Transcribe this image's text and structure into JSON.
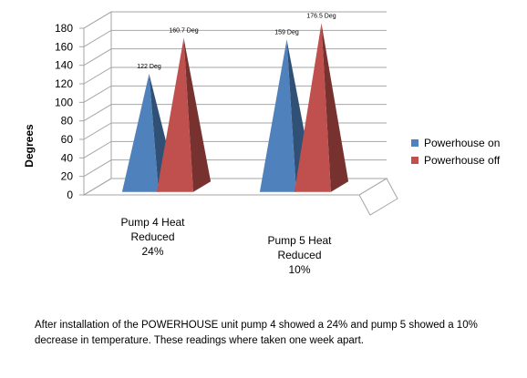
{
  "chart_data": {
    "type": "bar",
    "bar_shape": "pyramid-3d",
    "categories": [
      [
        "Pump 4 Heat",
        "Reduced",
        "24%"
      ],
      [
        "Pump 5 Heat",
        "Reduced",
        "10%"
      ]
    ],
    "series": [
      {
        "name": "Powerhouse on",
        "color": "#4F81BD",
        "values": [
          122,
          159
        ],
        "labels": [
          "122 Deg",
          "159 Deg"
        ]
      },
      {
        "name": "Powerhouse off",
        "color": "#C0504D",
        "values": [
          160.7,
          176.5
        ],
        "labels": [
          "160.7 Deg",
          "176.5 Deg"
        ]
      }
    ],
    "ylabel": "Degrees",
    "ylim": [
      0,
      180
    ],
    "yticks": [
      0,
      20,
      40,
      60,
      80,
      100,
      120,
      140,
      160,
      180
    ],
    "grid": true,
    "legend": "right"
  },
  "caption": "After installation of the POWERHOUSE unit pump 4 showed a 24% and pump 5 showed a 10% decrease in temperature. These readings where taken one week apart."
}
